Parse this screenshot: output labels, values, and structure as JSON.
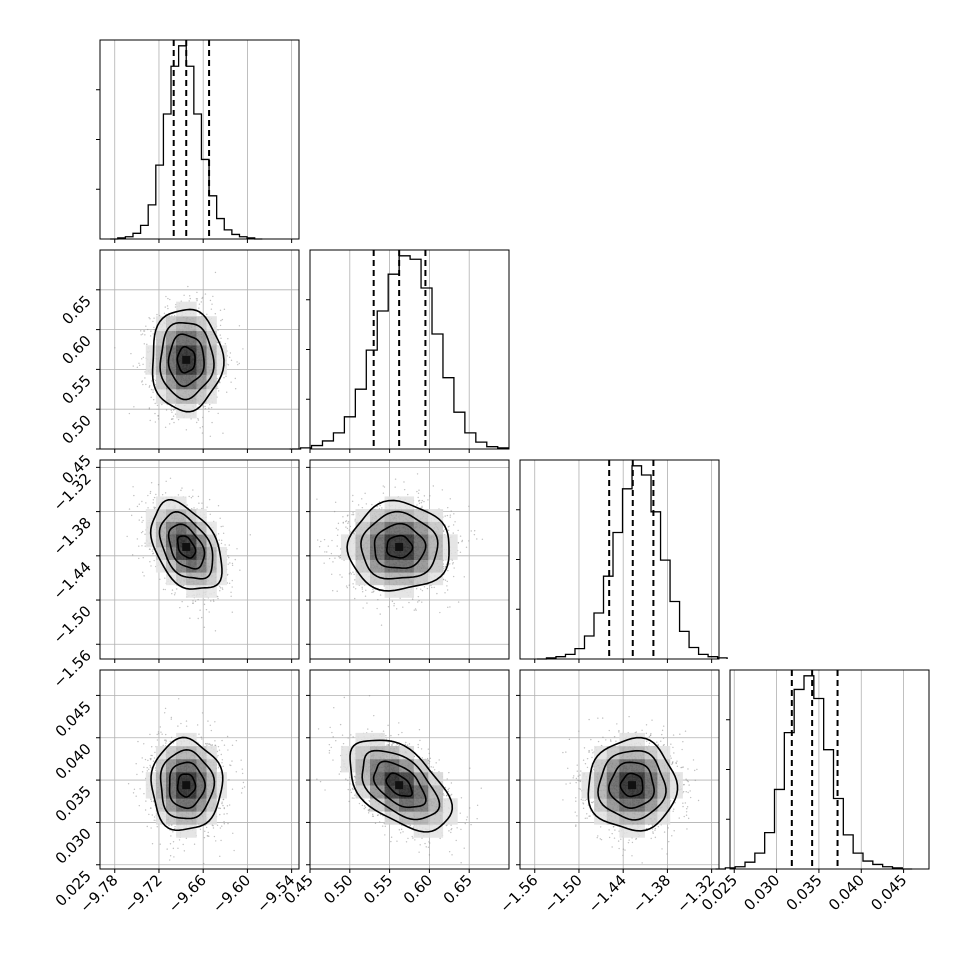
{
  "chart_data": {
    "type": "corner",
    "description_units": "data units",
    "params": [
      {
        "range": [
          -9.8,
          -9.53
        ],
        "ticks": [
          -9.78,
          -9.72,
          -9.66,
          -9.6,
          -9.54
        ],
        "tick_labels": [
          "−9.78",
          "−9.72",
          "−9.66",
          "−9.60",
          "−9.54"
        ],
        "quantiles": [
          -9.7,
          -9.683,
          -9.652
        ],
        "mean": -9.683,
        "sd": 0.024
      },
      {
        "range": [
          0.45,
          0.7
        ],
        "ticks": [
          0.45,
          0.5,
          0.55,
          0.6,
          0.65
        ],
        "tick_labels": [
          "0.45",
          "0.50",
          "0.55",
          "0.60",
          "0.65"
        ],
        "quantiles": [
          0.53,
          0.562,
          0.595
        ],
        "mean": 0.562,
        "sd": 0.032
      },
      {
        "range": [
          -1.58,
          -1.31
        ],
        "ticks": [
          -1.56,
          -1.5,
          -1.44,
          -1.38,
          -1.32
        ],
        "tick_labels": [
          "−1.56",
          "−1.50",
          "−1.44",
          "−1.38",
          "−1.32"
        ],
        "quantiles": [
          -1.459,
          -1.427,
          -1.399
        ],
        "mean": -1.428,
        "sd": 0.03
      },
      {
        "range": [
          0.0245,
          0.048
        ],
        "ticks": [
          0.025,
          0.03,
          0.035,
          0.04,
          0.045
        ],
        "tick_labels": [
          "0.025",
          "0.030",
          "0.035",
          "0.040",
          "0.045"
        ],
        "quantiles": [
          0.0318,
          0.0342,
          0.0372
        ],
        "mean": 0.0344,
        "sd": 0.0027
      }
    ],
    "correlations": [
      [
        1.0,
        0.0,
        -0.4,
        0.0
      ],
      [
        0.0,
        1.0,
        0.0,
        -0.5
      ],
      [
        -0.4,
        0.0,
        1.0,
        0.0
      ],
      [
        0.0,
        -0.5,
        0.0,
        1.0
      ]
    ],
    "histograms": [
      [
        0,
        1,
        2,
        5,
        12,
        30,
        65,
        110,
        152,
        170,
        152,
        110,
        70,
        38,
        18,
        8,
        4,
        2,
        1,
        0
      ],
      [
        0,
        1,
        3,
        7,
        14,
        28,
        52,
        86,
        120,
        152,
        168,
        165,
        140,
        100,
        62,
        32,
        14,
        6,
        2,
        1
      ],
      [
        0,
        1,
        2,
        4,
        9,
        20,
        40,
        72,
        110,
        148,
        168,
        160,
        128,
        86,
        50,
        24,
        10,
        4,
        2,
        1
      ],
      [
        0,
        1,
        2,
        6,
        14,
        32,
        70,
        120,
        158,
        170,
        150,
        105,
        62,
        30,
        14,
        7,
        4,
        2,
        1,
        0
      ]
    ],
    "contour_levels": [
      0.118,
      0.393,
      0.675,
      0.865
    ],
    "grid": true,
    "colors": {
      "line": "#000000",
      "grid": "#b0b0b0",
      "points": "#8c8c8c",
      "fill_max": "#101010"
    }
  }
}
